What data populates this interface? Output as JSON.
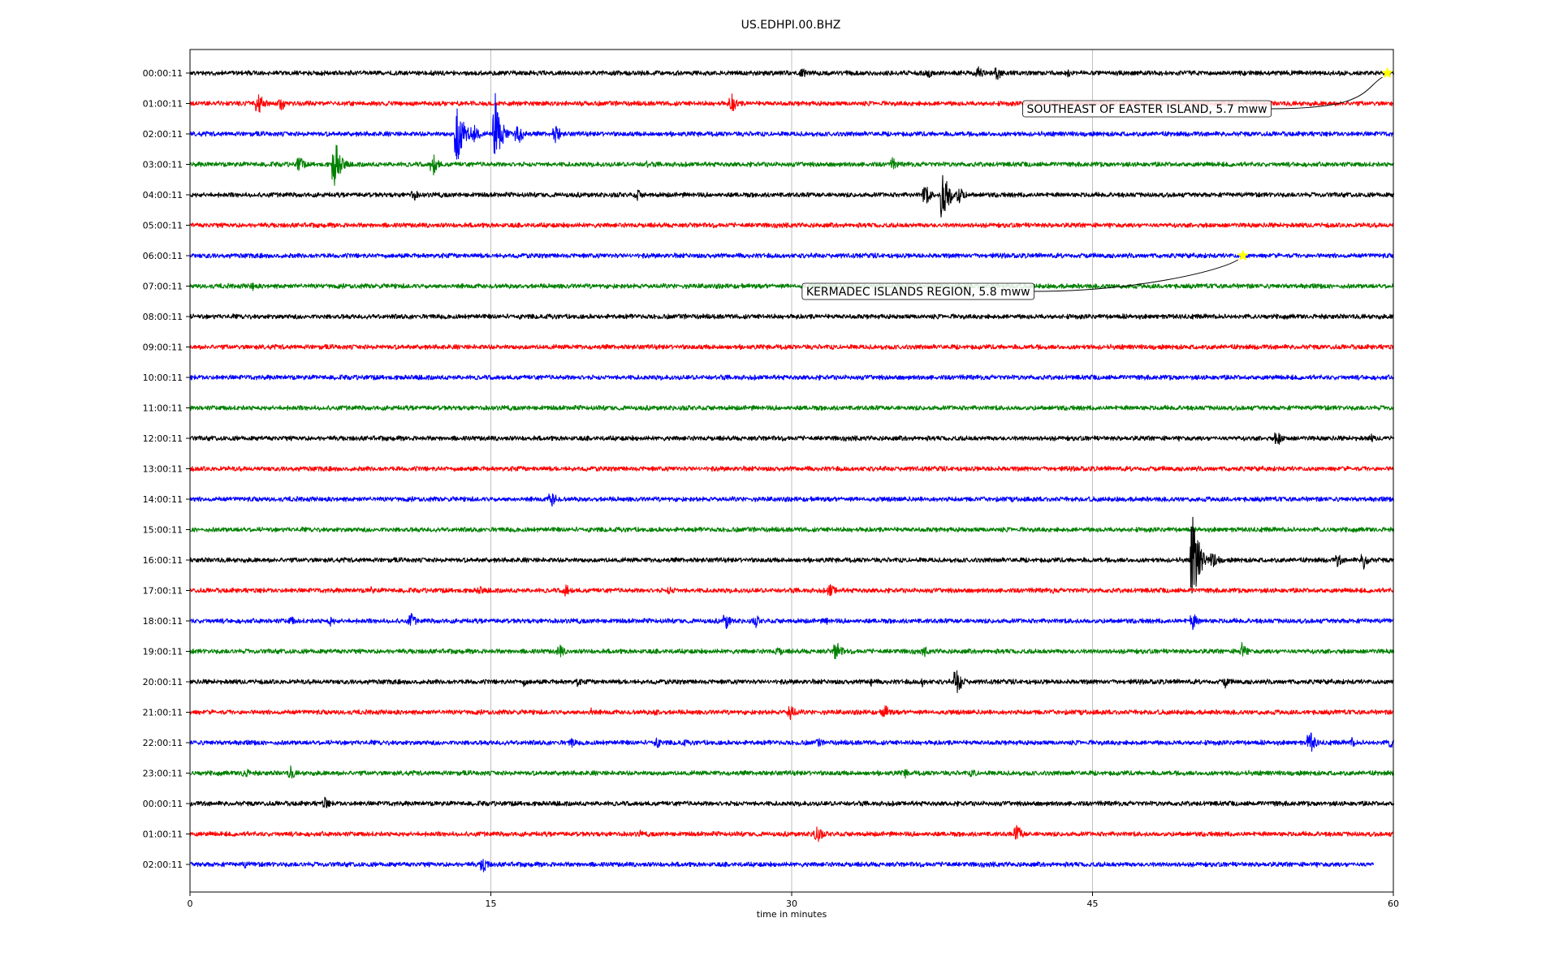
{
  "chart_data": {
    "type": "line",
    "title": "US.EDHPI.00.BHZ",
    "xlabel": "time in minutes",
    "xlim": [
      0,
      60
    ],
    "xticks": [
      "0",
      "15",
      "30",
      "45",
      "60"
    ],
    "xtick_values": [
      0,
      15,
      30,
      45,
      60
    ],
    "grid": "vertical at 15-minute intervals",
    "trace_colors": [
      "#000000",
      "#ff0000",
      "#0000ff",
      "#008000"
    ],
    "rows": [
      {
        "label": "00:00:11",
        "events": [
          {
            "t": 30.5,
            "a": 8
          },
          {
            "t": 36.8,
            "a": 7
          },
          {
            "t": 39.3,
            "a": 10
          },
          {
            "t": 40.2,
            "a": 12
          },
          {
            "t": 43.7,
            "a": 7
          }
        ]
      },
      {
        "label": "01:00:11",
        "events": [
          {
            "t": 3.4,
            "a": 18
          },
          {
            "t": 4.5,
            "a": 12
          },
          {
            "t": 27.0,
            "a": 14
          },
          {
            "t": 32.0,
            "a": 4
          }
        ]
      },
      {
        "label": "02:00:11",
        "events": [
          {
            "t": 13.3,
            "a": 60
          },
          {
            "t": 14.1,
            "a": 18
          },
          {
            "t": 15.2,
            "a": 55
          },
          {
            "t": 16.3,
            "a": 18
          },
          {
            "t": 18.2,
            "a": 14
          }
        ]
      },
      {
        "label": "03:00:11",
        "events": [
          {
            "t": 5.4,
            "a": 14
          },
          {
            "t": 7.2,
            "a": 38
          },
          {
            "t": 12.1,
            "a": 16
          },
          {
            "t": 22.7,
            "a": 6
          },
          {
            "t": 35.0,
            "a": 10
          }
        ]
      },
      {
        "label": "04:00:11",
        "events": [
          {
            "t": 11.1,
            "a": 10
          },
          {
            "t": 22.3,
            "a": 8
          },
          {
            "t": 36.6,
            "a": 18
          },
          {
            "t": 37.5,
            "a": 50
          },
          {
            "t": 38.3,
            "a": 14
          }
        ]
      },
      {
        "label": "05:00:11",
        "events": []
      },
      {
        "label": "06:00:11",
        "events": [
          {
            "t": 0.9,
            "a": 5
          }
        ]
      },
      {
        "label": "07:00:11",
        "events": [
          {
            "t": 3.1,
            "a": 7
          }
        ]
      },
      {
        "label": "08:00:11",
        "events": []
      },
      {
        "label": "09:00:11",
        "events": []
      },
      {
        "label": "10:00:11",
        "events": []
      },
      {
        "label": "11:00:11",
        "events": []
      },
      {
        "label": "12:00:11",
        "events": [
          {
            "t": 54.2,
            "a": 12
          },
          {
            "t": 58.9,
            "a": 6
          }
        ]
      },
      {
        "label": "13:00:11",
        "events": []
      },
      {
        "label": "14:00:11",
        "events": [
          {
            "t": 18.0,
            "a": 12
          }
        ]
      },
      {
        "label": "15:00:11",
        "events": []
      },
      {
        "label": "16:00:11",
        "events": [
          {
            "t": 50.0,
            "a": 70
          },
          {
            "t": 51.0,
            "a": 14
          },
          {
            "t": 57.2,
            "a": 10
          },
          {
            "t": 58.5,
            "a": 14
          }
        ]
      },
      {
        "label": "17:00:11",
        "events": [
          {
            "t": 9.0,
            "a": 6
          },
          {
            "t": 14.4,
            "a": 8
          },
          {
            "t": 18.7,
            "a": 10
          },
          {
            "t": 23.9,
            "a": 8
          },
          {
            "t": 31.9,
            "a": 12
          },
          {
            "t": 43.0,
            "a": 5
          }
        ]
      },
      {
        "label": "18:00:11",
        "events": [
          {
            "t": 5.0,
            "a": 8
          },
          {
            "t": 7.0,
            "a": 8
          },
          {
            "t": 11.0,
            "a": 12
          },
          {
            "t": 26.7,
            "a": 12
          },
          {
            "t": 28.2,
            "a": 9
          },
          {
            "t": 31.7,
            "a": 6
          },
          {
            "t": 50.0,
            "a": 12
          }
        ]
      },
      {
        "label": "19:00:11",
        "events": [
          {
            "t": 18.4,
            "a": 10
          },
          {
            "t": 29.3,
            "a": 8
          },
          {
            "t": 32.2,
            "a": 16
          },
          {
            "t": 36.6,
            "a": 8
          },
          {
            "t": 52.4,
            "a": 14
          }
        ]
      },
      {
        "label": "20:00:11",
        "events": [
          {
            "t": 16.6,
            "a": 7
          },
          {
            "t": 19.3,
            "a": 7
          },
          {
            "t": 33.9,
            "a": 7
          },
          {
            "t": 36.5,
            "a": 7
          },
          {
            "t": 38.2,
            "a": 20
          },
          {
            "t": 51.6,
            "a": 9
          }
        ]
      },
      {
        "label": "21:00:11",
        "events": [
          {
            "t": 20.0,
            "a": 6
          },
          {
            "t": 23.2,
            "a": 7
          },
          {
            "t": 29.9,
            "a": 14
          },
          {
            "t": 34.6,
            "a": 12
          }
        ]
      },
      {
        "label": "22:00:11",
        "events": [
          {
            "t": 19.0,
            "a": 8
          },
          {
            "t": 23.2,
            "a": 10
          },
          {
            "t": 24.6,
            "a": 6
          },
          {
            "t": 31.3,
            "a": 7
          },
          {
            "t": 55.8,
            "a": 18
          },
          {
            "t": 57.9,
            "a": 8
          },
          {
            "t": 59.8,
            "a": 9
          }
        ]
      },
      {
        "label": "23:00:11",
        "events": [
          {
            "t": 2.7,
            "a": 9
          },
          {
            "t": 5.0,
            "a": 10
          },
          {
            "t": 35.6,
            "a": 8
          },
          {
            "t": 39.0,
            "a": 8
          }
        ]
      },
      {
        "label": "00:00:11",
        "events": [
          {
            "t": 6.7,
            "a": 9
          },
          {
            "t": 27.1,
            "a": 5
          },
          {
            "t": 54.0,
            "a": 5
          }
        ]
      },
      {
        "label": "01:00:11",
        "events": [
          {
            "t": 22.4,
            "a": 6
          },
          {
            "t": 31.2,
            "a": 16
          },
          {
            "t": 41.2,
            "a": 14
          }
        ]
      },
      {
        "label": "02:00:11",
        "events": [
          {
            "t": 2.7,
            "a": 6
          },
          {
            "t": 14.6,
            "a": 12
          },
          {
            "t": 37.7,
            "a": 6
          }
        ],
        "end_minute": 59.0
      }
    ],
    "annotations": [
      {
        "text": "SOUTHEAST OF EASTER ISLAND, 5.7 mww",
        "row": 0,
        "t": 59.7
      },
      {
        "text": "KERMADEC ISLANDS REGION, 5.8 mww",
        "row": 6,
        "t": 52.5
      }
    ],
    "marker_color": "#ffff00"
  }
}
